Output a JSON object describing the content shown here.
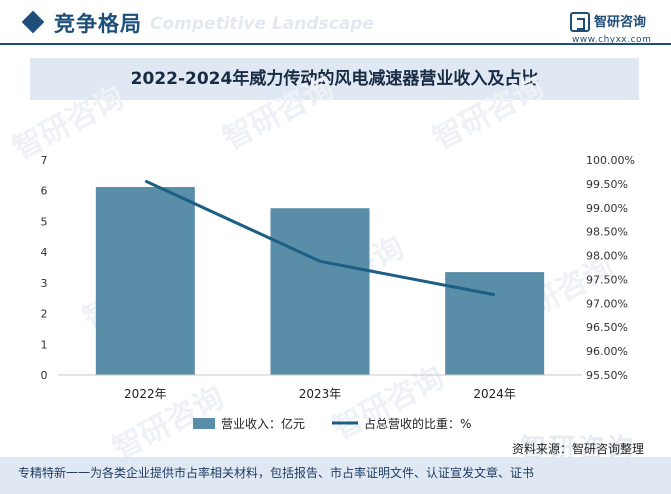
{
  "header": {
    "title": "竞争格局",
    "ghost_text": "Competitive Landscape",
    "logo_name": "智研咨询",
    "logo_url": "www.chyxx.com"
  },
  "watermark": {
    "text": "智研咨询"
  },
  "chart_data": {
    "type": "bar+line",
    "title": "2022-2024年威力传动的风电减速器营业收入及占比",
    "categories": [
      "2022年",
      "2023年",
      "2024年"
    ],
    "series": [
      {
        "name": "营业收入：亿元",
        "kind": "bar",
        "axis": "left",
        "values": [
          6.12,
          5.43,
          3.35
        ],
        "color": "#5a8ea8"
      },
      {
        "name": "占总营收的比重：%",
        "kind": "line",
        "axis": "right",
        "values": [
          99.56,
          97.88,
          97.18
        ],
        "color": "#1b5f85"
      }
    ],
    "y_left": {
      "min": 0,
      "max": 7,
      "ticks": [
        "0",
        "1",
        "2",
        "3",
        "4",
        "5",
        "6",
        "7"
      ]
    },
    "y_right": {
      "min": 95.5,
      "max": 100.0,
      "ticks": [
        "95.50%",
        "96.00%",
        "96.50%",
        "97.00%",
        "97.50%",
        "98.00%",
        "98.50%",
        "99.00%",
        "99.50%",
        "100.00%"
      ]
    },
    "legend": [
      "营业收入：亿元",
      "占总营收的比重：%"
    ],
    "legend_position": "bottom"
  },
  "source": "资料来源：智研咨询整理",
  "footer": "专精特新一一为各类企业提供市占率相关材料，包括报告、市占率证明文件、认证宣发文章、证书"
}
